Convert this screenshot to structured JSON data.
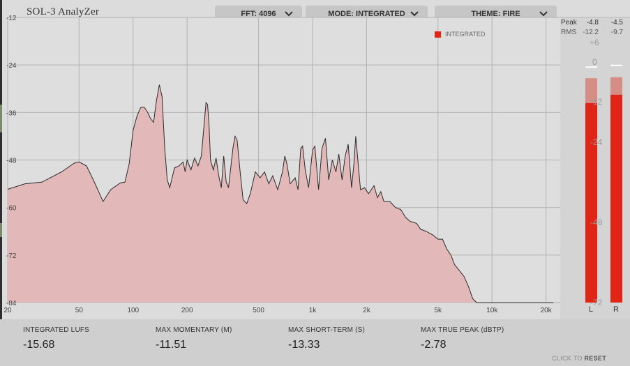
{
  "app": {
    "title": "SOL-3 AnalyZer"
  },
  "dropdowns": [
    {
      "label": "FFT: 4096",
      "icon": "chevron-down-icon"
    },
    {
      "label": "MODE: INTEGRATED",
      "icon": "chevron-down-icon"
    },
    {
      "label": "THEME: FIRE",
      "icon": "chevron-down-icon"
    }
  ],
  "legend": {
    "label": "INTEGRATED",
    "color": "#e02416"
  },
  "colors": {
    "fill": "#e2b8b8",
    "stroke": "#2a2a2a",
    "grid": "#b2b2b2",
    "meter": "#e02416",
    "meter_peak": "#d48e86"
  },
  "chart_data": {
    "type": "area",
    "xscale": "log",
    "xlim": [
      20,
      24000
    ],
    "ylim": [
      -84,
      -12
    ],
    "grid": true,
    "x_ticks": [
      {
        "value": 20,
        "label": "20"
      },
      {
        "value": 50,
        "label": "50"
      },
      {
        "value": 100,
        "label": "100"
      },
      {
        "value": 200,
        "label": "200"
      },
      {
        "value": 500,
        "label": "500"
      },
      {
        "value": 1000,
        "label": "1k"
      },
      {
        "value": 2000,
        "label": "2k"
      },
      {
        "value": 5000,
        "label": "5k"
      },
      {
        "value": 10000,
        "label": "10k"
      },
      {
        "value": 20000,
        "label": "20k"
      }
    ],
    "y_ticks": [
      {
        "value": -12,
        "label": "-12"
      },
      {
        "value": -24,
        "label": "-24"
      },
      {
        "value": -36,
        "label": "-36"
      },
      {
        "value": -48,
        "label": "-48"
      },
      {
        "value": -60,
        "label": "-60"
      },
      {
        "value": -72,
        "label": "-72"
      },
      {
        "value": -84,
        "label": "-84"
      }
    ],
    "series": [
      {
        "name": "INTEGRATED",
        "points": [
          [
            20,
            -55.4
          ],
          [
            25,
            -54.0
          ],
          [
            31,
            -53.6
          ],
          [
            40,
            -51.0
          ],
          [
            47,
            -48.8
          ],
          [
            50,
            -48.5
          ],
          [
            55,
            -49.5
          ],
          [
            60,
            -53.0
          ],
          [
            65,
            -56.5
          ],
          [
            68,
            -58.5
          ],
          [
            75,
            -55.5
          ],
          [
            85,
            -53.8
          ],
          [
            90,
            -53.6
          ],
          [
            95,
            -49.0
          ],
          [
            100,
            -40.5
          ],
          [
            105,
            -37.0
          ],
          [
            110,
            -34.8
          ],
          [
            115,
            -34.6
          ],
          [
            120,
            -35.8
          ],
          [
            125,
            -37.5
          ],
          [
            130,
            -38.5
          ],
          [
            135,
            -33.0
          ],
          [
            140,
            -29.0
          ],
          [
            145,
            -32.0
          ],
          [
            150,
            -45.0
          ],
          [
            155,
            -53.0
          ],
          [
            160,
            -55.0
          ],
          [
            170,
            -50.0
          ],
          [
            180,
            -49.5
          ],
          [
            190,
            -48.5
          ],
          [
            195,
            -51.0
          ],
          [
            200,
            -48.0
          ],
          [
            210,
            -50.5
          ],
          [
            220,
            -47.5
          ],
          [
            230,
            -49.5
          ],
          [
            240,
            -47.0
          ],
          [
            250,
            -38.0
          ],
          [
            255,
            -33.5
          ],
          [
            260,
            -34.0
          ],
          [
            265,
            -39.0
          ],
          [
            270,
            -48.0
          ],
          [
            280,
            -50.5
          ],
          [
            290,
            -47.5
          ],
          [
            300,
            -52.0
          ],
          [
            310,
            -55.0
          ],
          [
            320,
            -47.0
          ],
          [
            330,
            -53.5
          ],
          [
            340,
            -55.0
          ],
          [
            350,
            -50.0
          ],
          [
            360,
            -45.0
          ],
          [
            370,
            -42.0
          ],
          [
            380,
            -43.0
          ],
          [
            395,
            -51.0
          ],
          [
            410,
            -58.0
          ],
          [
            430,
            -59.0
          ],
          [
            450,
            -56.5
          ],
          [
            480,
            -51.0
          ],
          [
            510,
            -52.5
          ],
          [
            540,
            -51.0
          ],
          [
            570,
            -54.0
          ],
          [
            600,
            -52.0
          ],
          [
            640,
            -55.5
          ],
          [
            680,
            -51.0
          ],
          [
            700,
            -47.0
          ],
          [
            720,
            -49.0
          ],
          [
            750,
            -54.0
          ],
          [
            800,
            -52.5
          ],
          [
            830,
            -55.5
          ],
          [
            860,
            -45.0
          ],
          [
            880,
            -44.5
          ],
          [
            910,
            -50.5
          ],
          [
            950,
            -55.0
          ],
          [
            1000,
            -45.5
          ],
          [
            1030,
            -44.5
          ],
          [
            1080,
            -55.5
          ],
          [
            1130,
            -45.0
          ],
          [
            1180,
            -42.5
          ],
          [
            1230,
            -53.0
          ],
          [
            1290,
            -48.0
          ],
          [
            1350,
            -51.0
          ],
          [
            1400,
            -46.5
          ],
          [
            1460,
            -53.0
          ],
          [
            1520,
            -47.0
          ],
          [
            1580,
            -44.0
          ],
          [
            1650,
            -55.0
          ],
          [
            1700,
            -49.0
          ],
          [
            1740,
            -42.0
          ],
          [
            1780,
            -47.0
          ],
          [
            1850,
            -55.5
          ],
          [
            1950,
            -55.0
          ],
          [
            2050,
            -56.5
          ],
          [
            2200,
            -54.5
          ],
          [
            2300,
            -57.5
          ],
          [
            2400,
            -56.0
          ],
          [
            2500,
            -58.5
          ],
          [
            2700,
            -58.5
          ],
          [
            2900,
            -60.0
          ],
          [
            3100,
            -60.5
          ],
          [
            3300,
            -62.5
          ],
          [
            3500,
            -63.5
          ],
          [
            3800,
            -64.0
          ],
          [
            4000,
            -65.5
          ],
          [
            4300,
            -66.0
          ],
          [
            4700,
            -67.0
          ],
          [
            5000,
            -68.0
          ],
          [
            5300,
            -68.0
          ],
          [
            5600,
            -70.5
          ],
          [
            5900,
            -72.0
          ],
          [
            6200,
            -74.5
          ],
          [
            6600,
            -76.0
          ],
          [
            7000,
            -77.5
          ],
          [
            7400,
            -80.0
          ],
          [
            7800,
            -83.0
          ],
          [
            8200,
            -84.0
          ],
          [
            9000,
            -84.0
          ],
          [
            12000,
            -84.0
          ],
          [
            16000,
            -84.0
          ],
          [
            20000,
            -84.0
          ],
          [
            22000,
            -84.0
          ]
        ]
      }
    ]
  },
  "meters": {
    "readouts": {
      "peak_label": "Peak",
      "peak_l": "-4.8",
      "peak_r": "-4.5",
      "rms_label": "RMS",
      "rms_l": "-12.2",
      "rms_r": "-9.7"
    },
    "scale": [
      "+6",
      "0",
      "-12",
      "-24",
      "-48",
      "-72"
    ],
    "channels": [
      {
        "label": "L",
        "rms": -12.2,
        "peak": -4.8,
        "hold": -1.5
      },
      {
        "label": "R",
        "rms": -9.7,
        "peak": -4.5,
        "hold": -1.0
      }
    ]
  },
  "stats": [
    {
      "label": "INTEGRATED LUFS",
      "value": "-15.68"
    },
    {
      "label": "MAX MOMENTARY (M)",
      "value": "-11.51"
    },
    {
      "label": "MAX SHORT-TERM (S)",
      "value": "-13.33"
    },
    {
      "label": "MAX TRUE PEAK (dBTP)",
      "value": "-2.78"
    }
  ],
  "reset": {
    "prefix": "CLICK TO",
    "action": "RESET"
  }
}
